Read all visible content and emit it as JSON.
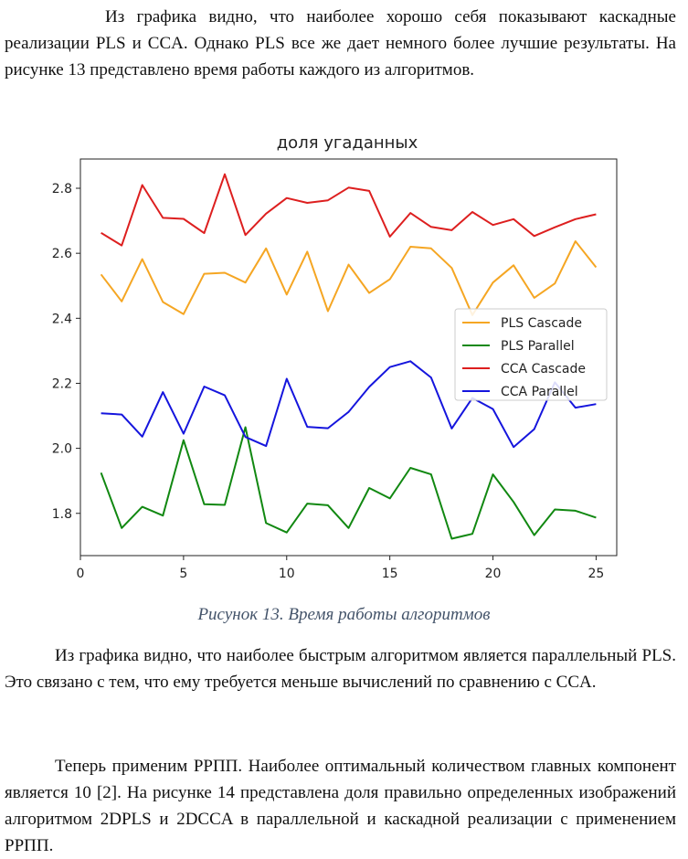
{
  "paragraphs": {
    "p1": "Из графика видно, что наиболее хорошо себя показывают каскадные реализации PLS и CCA. Однако PLS все же дает немного более лучшие результаты. На рисунке 13 представлено время работы каждого из алгоритмов.",
    "p2": "Из графика видно, что наиболее быстрым алгоритмом является параллельный PLS. Это связано с тем, что ему требуется меньше вычислений по сравнению с CCA.",
    "p3": "Теперь применим РРПП. Наиболее оптимальный количеством главных компонент является 10 [2]. На рисунке 14 представлена доля правильно определенных изображений алгоритмом 2DPLS и 2DCCA в параллельной и каскадной реализации с применением РРПП."
  },
  "caption": "Рисунок 13. Время работы алгоритмов",
  "chart_data": {
    "type": "line",
    "title": "доля угаданных",
    "xlabel": "",
    "ylabel": "",
    "xlim": [
      0,
      26
    ],
    "ylim": [
      1.67,
      2.89
    ],
    "x_ticks": [
      0,
      5,
      10,
      15,
      20,
      25
    ],
    "y_ticks": [
      1.8,
      2.0,
      2.2,
      2.4,
      2.6,
      2.8
    ],
    "grid": false,
    "legend_position": "center-right",
    "x": [
      1,
      2,
      3,
      4,
      5,
      6,
      7,
      8,
      9,
      10,
      11,
      12,
      13,
      14,
      15,
      16,
      17,
      18,
      19,
      20,
      21,
      22,
      23,
      24,
      25
    ],
    "series": [
      {
        "name": "PLS Cascade",
        "color": "#f5a623",
        "values": [
          2.535,
          2.452,
          2.582,
          2.45,
          2.413,
          2.537,
          2.54,
          2.51,
          2.615,
          2.473,
          2.605,
          2.422,
          2.565,
          2.478,
          2.52,
          2.62,
          2.615,
          2.555,
          2.41,
          2.51,
          2.563,
          2.463,
          2.507,
          2.637,
          2.557
        ]
      },
      {
        "name": "PLS Parallel",
        "color": "#118811",
        "values": [
          1.925,
          1.755,
          1.82,
          1.793,
          2.025,
          1.828,
          1.826,
          2.065,
          1.77,
          1.741,
          1.83,
          1.825,
          1.755,
          1.878,
          1.846,
          1.94,
          1.92,
          1.722,
          1.737,
          1.92,
          1.835,
          1.733,
          1.812,
          1.808,
          1.787
        ]
      },
      {
        "name": "CCA Cascade",
        "color": "#dd1f1f",
        "values": [
          2.663,
          2.624,
          2.81,
          2.709,
          2.706,
          2.662,
          2.843,
          2.656,
          2.722,
          2.77,
          2.755,
          2.763,
          2.802,
          2.792,
          2.651,
          2.724,
          2.681,
          2.671,
          2.727,
          2.687,
          2.705,
          2.653,
          2.68,
          2.705,
          2.72
        ]
      },
      {
        "name": "CCA Parallel",
        "color": "#1515dd",
        "values": [
          2.108,
          2.104,
          2.036,
          2.173,
          2.045,
          2.19,
          2.163,
          2.035,
          2.007,
          2.214,
          2.066,
          2.062,
          2.112,
          2.189,
          2.25,
          2.268,
          2.218,
          2.061,
          2.155,
          2.121,
          2.004,
          2.059,
          2.203,
          2.125,
          2.136
        ]
      }
    ]
  }
}
